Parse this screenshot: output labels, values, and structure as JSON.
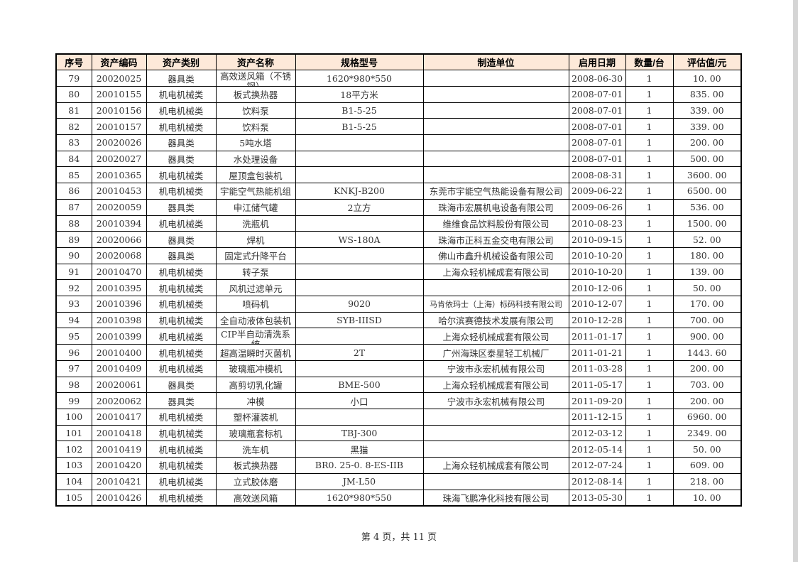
{
  "colors": {
    "header_bg": "#FDE9D9",
    "border": "#000000",
    "text": "#333333"
  },
  "footer": {
    "page_text": "第 4 页，共 11 页"
  },
  "table": {
    "columns": [
      "序号",
      "资产编码",
      "资产类别",
      "资产名称",
      "规格型号",
      "制造单位",
      "启用日期",
      "数量/台",
      "评估值/元"
    ],
    "rows": [
      [
        "79",
        "20020025",
        "器具类",
        "高效送风箱（不锈钢）",
        "1620*980*550",
        "",
        "2008-06-30",
        "1",
        "10. 00"
      ],
      [
        "80",
        "20010155",
        "机电机械类",
        "板式换热器",
        "18平方米",
        "",
        "2008-07-01",
        "1",
        "835. 00"
      ],
      [
        "81",
        "20010156",
        "机电机械类",
        "饮料泵",
        "B1-5-25",
        "",
        "2008-07-01",
        "1",
        "339. 00"
      ],
      [
        "82",
        "20010157",
        "机电机械类",
        "饮料泵",
        "B1-5-25",
        "",
        "2008-07-01",
        "1",
        "339. 00"
      ],
      [
        "83",
        "20020026",
        "器具类",
        "5吨水塔",
        "",
        "",
        "2008-07-01",
        "1",
        "200. 00"
      ],
      [
        "84",
        "20020027",
        "器具类",
        "水处理设备",
        "",
        "",
        "2008-07-01",
        "1",
        "500. 00"
      ],
      [
        "85",
        "20010365",
        "机电机械类",
        "屋顶盒包装机",
        "",
        "",
        "2008-08-31",
        "1",
        "3600. 00"
      ],
      [
        "86",
        "20010453",
        "机电机械类",
        "宇能空气热能机组",
        "KNKJ-B200",
        "东莞市宇能空气热能设备有限公司",
        "2009-06-22",
        "1",
        "6500. 00"
      ],
      [
        "87",
        "20020059",
        "器具类",
        "申江储气罐",
        "2立方",
        "珠海市宏展机电设备有限公司",
        "2009-06-26",
        "1",
        "536. 00"
      ],
      [
        "88",
        "20010394",
        "机电机械类",
        "洗瓶机",
        "",
        "维维食品饮料股份有限公司",
        "2010-08-23",
        "1",
        "1500. 00"
      ],
      [
        "89",
        "20020066",
        "器具类",
        "焊机",
        "WS-180A",
        "珠海市正科五金交电有限公司",
        "2010-09-15",
        "1",
        "52. 00"
      ],
      [
        "90",
        "20020068",
        "器具类",
        "固定式升降平台",
        "",
        "佛山市鑫升机械设备有限公司",
        "2010-10-20",
        "1",
        "180. 00"
      ],
      [
        "91",
        "20010470",
        "机电机械类",
        "转子泵",
        "",
        "上海众轻机械成套有限公司",
        "2010-10-20",
        "1",
        "139. 00"
      ],
      [
        "92",
        "20010395",
        "机电机械类",
        "风机过滤单元",
        "",
        "",
        "2010-12-06",
        "1",
        "50. 00"
      ],
      [
        "93",
        "20010396",
        "机电机械类",
        "喷码机",
        "9020",
        "马肯依玛士（上海）标码科技有限公司",
        "2010-12-07",
        "1",
        "170. 00"
      ],
      [
        "94",
        "20010398",
        "机电机械类",
        "全自动液体包装机",
        "SYB-IIISD",
        "哈尔滨赛德技术发展有限公司",
        "2010-12-28",
        "1",
        "700. 00"
      ],
      [
        "95",
        "20010399",
        "机电机械类",
        "CIP半自动清洗系统",
        "",
        "上海众轻机械成套有限公司",
        "2011-01-17",
        "1",
        "900. 00"
      ],
      [
        "96",
        "20010400",
        "机电机械类",
        "超高温瞬时灭菌机",
        "2T",
        "广州海珠区泰星轻工机械厂",
        "2011-01-21",
        "1",
        "1443. 60"
      ],
      [
        "97",
        "20010409",
        "机电机械类",
        "玻璃瓶冲模机",
        "",
        "宁波市永宏机械有限公司",
        "2011-03-28",
        "1",
        "200. 00"
      ],
      [
        "98",
        "20020061",
        "器具类",
        "高剪切乳化罐",
        "BME-500",
        "上海众轻机械成套有限公司",
        "2011-05-17",
        "1",
        "703. 00"
      ],
      [
        "99",
        "20020062",
        "器具类",
        "冲模",
        "小口",
        "宁波市永宏机械有限公司",
        "2011-09-20",
        "1",
        "200. 00"
      ],
      [
        "100",
        "20010417",
        "机电机械类",
        "塑杯灌装机",
        "",
        "",
        "2011-12-15",
        "1",
        "6960. 00"
      ],
      [
        "101",
        "20010418",
        "机电机械类",
        "玻璃瓶套标机",
        "TBJ-300",
        "",
        "2012-03-12",
        "1",
        "2349. 00"
      ],
      [
        "102",
        "20010419",
        "机电机械类",
        "洗车机",
        "黑猫",
        "",
        "2012-05-14",
        "1",
        "50. 00"
      ],
      [
        "103",
        "20010420",
        "机电机械类",
        "板式换热器",
        "BR0. 25-0. 8-ES-IIB",
        "上海众轻机械成套有限公司",
        "2012-07-24",
        "1",
        "609. 00"
      ],
      [
        "104",
        "20010421",
        "机电机械类",
        "立式胶体磨",
        "JM-L50",
        "",
        "2012-08-14",
        "1",
        "218. 00"
      ],
      [
        "105",
        "20010426",
        "机电机械类",
        "高效送风箱",
        "1620*980*550",
        "珠海飞鹏净化科技有限公司",
        "2013-05-30",
        "1",
        "10. 00"
      ]
    ]
  }
}
